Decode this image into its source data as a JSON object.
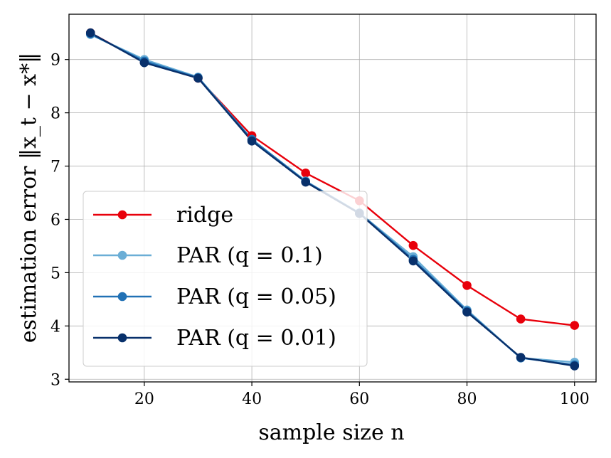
{
  "chart_data": {
    "type": "line",
    "title": "",
    "xlabel": "sample size n",
    "ylabel": "estimation error ‖x_t − x*‖",
    "xlim": [
      6,
      104
    ],
    "ylim": [
      2.95,
      9.85
    ],
    "xticks": [
      20,
      40,
      60,
      80,
      100
    ],
    "yticks": [
      3,
      4,
      5,
      6,
      7,
      8,
      9
    ],
    "grid": true,
    "legend_position": "lower-left",
    "x": [
      10,
      20,
      30,
      40,
      50,
      60,
      70,
      80,
      90,
      100
    ],
    "series": [
      {
        "name": "ridge",
        "color": "#e8000b",
        "values": [
          9.5,
          8.95,
          8.65,
          7.57,
          6.87,
          6.35,
          5.51,
          4.76,
          4.13,
          4.01
        ]
      },
      {
        "name": "PAR (q = 0.1)",
        "color": "#6baed6",
        "values": [
          9.47,
          9.0,
          8.67,
          7.5,
          6.72,
          6.12,
          5.3,
          4.3,
          3.4,
          3.32
        ]
      },
      {
        "name": "PAR (q = 0.05)",
        "color": "#2171b5",
        "values": [
          9.48,
          8.97,
          8.66,
          7.5,
          6.71,
          6.12,
          5.25,
          4.28,
          3.4,
          3.27
        ]
      },
      {
        "name": "PAR (q = 0.01)",
        "color": "#08306b",
        "values": [
          9.5,
          8.94,
          8.65,
          7.47,
          6.7,
          6.11,
          5.22,
          4.26,
          3.41,
          3.25
        ]
      }
    ]
  }
}
